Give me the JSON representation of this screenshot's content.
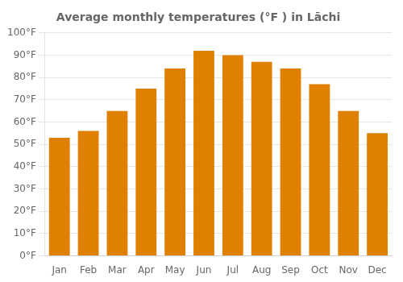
{
  "chart_data": {
    "type": "bar",
    "title": "Average monthly temperatures (°F ) in Lāchi",
    "categories": [
      "Jan",
      "Feb",
      "Mar",
      "Apr",
      "May",
      "Jun",
      "Jul",
      "Aug",
      "Sep",
      "Oct",
      "Nov",
      "Dec"
    ],
    "values": [
      53,
      56,
      65,
      75,
      84,
      92,
      90,
      87,
      84,
      77,
      65,
      55
    ],
    "color": "#E08000",
    "ylim": [
      0,
      100
    ],
    "yticks": [
      {
        "value": 0,
        "label": "0°F"
      },
      {
        "value": 10,
        "label": "10°F"
      },
      {
        "value": 20,
        "label": "20°F"
      },
      {
        "value": 30,
        "label": "30°F"
      },
      {
        "value": 40,
        "label": "40°F"
      },
      {
        "value": 50,
        "label": "50°F"
      },
      {
        "value": 60,
        "label": "60°F"
      },
      {
        "value": 70,
        "label": "70°F"
      },
      {
        "value": 80,
        "label": "80°F"
      },
      {
        "value": 90,
        "label": "90°F"
      },
      {
        "value": 100,
        "label": "100°F"
      }
    ],
    "grid": true
  }
}
